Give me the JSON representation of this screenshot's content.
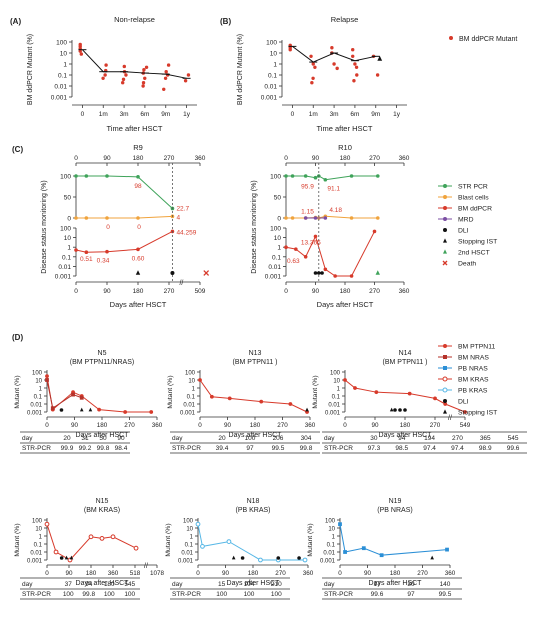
{
  "colors": {
    "red": "#d73a2b",
    "darkred": "#b5322a",
    "green": "#3fa35a",
    "orange": "#f0a33c",
    "purple": "#7b4ea3",
    "blue": "#2b8fd6",
    "lightblue": "#56b7e6",
    "black": "#111111",
    "axis": "#333333",
    "dash": "#555555"
  },
  "labels": {
    "panel_a": "(A)",
    "panel_b": "(B)",
    "panel_c": "(C)",
    "panel_d": "(D)",
    "dpcr_axis": "BM ddPCR Mutant (%)",
    "time_after_hsct": "Time after HSCT",
    "days_after_hsct": "Days after HSCT",
    "disease_status": "Disease status monitoring (%)",
    "mutant_pct": "Mutant (%)",
    "day": "day",
    "str_pcr": "STR-PCR"
  },
  "chart_data": [
    {
      "id": "A",
      "type": "scatter",
      "title": "Non-relapse",
      "xlabel": "Time after HSCT",
      "ylabel": "BM ddPCR Mutant (%)",
      "categories": [
        "0",
        "1m",
        "3m",
        "6m",
        "9m",
        "1y"
      ],
      "ylog": true,
      "ylim": [
        0.001,
        100
      ],
      "yticks": [
        "100",
        "10",
        "1",
        "0.1",
        "0.01",
        "0.001"
      ],
      "points": [
        [
          0,
          40
        ],
        [
          0,
          25
        ],
        [
          0,
          15
        ],
        [
          0,
          8
        ],
        [
          0,
          60
        ],
        [
          1,
          0.8
        ],
        [
          1,
          0.25
        ],
        [
          1,
          0.05
        ],
        [
          1,
          0.1
        ],
        [
          2,
          0.6
        ],
        [
          2,
          0.2
        ],
        [
          2,
          0.1
        ],
        [
          2,
          0.04
        ],
        [
          2,
          0.02
        ],
        [
          3,
          0.5
        ],
        [
          3,
          0.3
        ],
        [
          3,
          0.15
        ],
        [
          3,
          0.05
        ],
        [
          3,
          0.02
        ],
        [
          3,
          0.01
        ],
        [
          4,
          0.8
        ],
        [
          4,
          0.2
        ],
        [
          4,
          0.1
        ],
        [
          4,
          0.05
        ],
        [
          4,
          0.005
        ],
        [
          5,
          0.1
        ],
        [
          5,
          0.03
        ]
      ],
      "median": [
        20,
        0.2,
        0.2,
        0.15,
        0.12,
        0.05
      ]
    },
    {
      "id": "B",
      "type": "scatter",
      "title": "Relapse",
      "xlabel": "Time after HSCT",
      "ylabel": "BM ddPCR Mutant (%)",
      "categories": [
        "0",
        "1m",
        "3m",
        "6m",
        "9m",
        "1y"
      ],
      "ylog": true,
      "ylim": [
        0.001,
        100
      ],
      "yticks": [
        "100",
        "10",
        "1",
        "0.1",
        "0.01",
        "0.001"
      ],
      "legend": "BM ddPCR Mutant",
      "points": [
        [
          0,
          50
        ],
        [
          0,
          40
        ],
        [
          0,
          30
        ],
        [
          0,
          20
        ],
        [
          1,
          5
        ],
        [
          1,
          1
        ],
        [
          1,
          0.5
        ],
        [
          1,
          0.05
        ],
        [
          1,
          0.02
        ],
        [
          2,
          30
        ],
        [
          2,
          10
        ],
        [
          2,
          1
        ],
        [
          2,
          0.4
        ],
        [
          3,
          20
        ],
        [
          3,
          5
        ],
        [
          3,
          1
        ],
        [
          3,
          0.5
        ],
        [
          3,
          0.1
        ],
        [
          3,
          0.03
        ],
        [
          4,
          5
        ],
        [
          4,
          0.1
        ]
      ],
      "median": [
        40,
        1.5,
        10,
        2,
        5,
        null
      ]
    },
    {
      "id": "C-R9",
      "type": "line",
      "title": "R9",
      "top_xticks": [
        "0",
        "90",
        "180",
        "270",
        "360"
      ],
      "top": {
        "ylim": [
          0,
          100
        ],
        "yticks": [
          "100",
          "50",
          "0"
        ],
        "series": [
          {
            "name": "STR PCR",
            "x": [
              0,
              30,
              90,
              180,
              280
            ],
            "y": [
              100,
              100,
              100,
              98,
              22.7
            ]
          },
          {
            "name": "Blast cells",
            "x": [
              0,
              30,
              90,
              180,
              280
            ],
            "y": [
              0,
              0,
              0,
              0,
              4
            ]
          }
        ],
        "annotations": [
          "98",
          "22.7",
          "0",
          "0",
          "4"
        ]
      },
      "bottom": {
        "ylog": true,
        "ylim": [
          0.001,
          100
        ],
        "yticks": [
          "100",
          "10",
          "1",
          "0.1",
          "0.01",
          "0.001"
        ],
        "series": [
          {
            "name": "BM ddPCR",
            "x": [
              0,
              30,
              90,
              180,
              280
            ],
            "y": [
              0.51,
              0.3,
              0.34,
              0.6,
              44.259
            ]
          }
        ],
        "annotations": [
          "0.51",
          "0.34",
          "0.60",
          "44.259"
        ]
      },
      "xticks": [
        "0",
        "90",
        "180",
        "270",
        "509"
      ],
      "xlabel": "Days after HSCT",
      "ylabel": "Disease status monitoring (%)",
      "events": [
        {
          "type": "stopping_ist",
          "x": 180
        },
        {
          "type": "dli",
          "x": 280
        },
        {
          "type": "death",
          "x": 509
        }
      ]
    },
    {
      "id": "C-R10",
      "type": "line",
      "title": "R10",
      "top_xticks": [
        "0",
        "90",
        "180",
        "270",
        "360"
      ],
      "top": {
        "ylim": [
          0,
          100
        ],
        "yticks": [
          "100",
          "50",
          "0"
        ],
        "series": [
          {
            "name": "STR PCR",
            "x": [
              0,
              20,
              60,
              90,
              100,
              120,
              200,
              280
            ],
            "y": [
              100,
              100,
              100,
              95.9,
              100,
              91.1,
              100,
              100
            ]
          },
          {
            "name": "Blast cells",
            "x": [
              0,
              20,
              60,
              90,
              100,
              120,
              200,
              280
            ],
            "y": [
              0,
              0,
              0,
              1.15,
              0,
              4.18,
              0,
              0
            ]
          },
          {
            "name": "MRD",
            "x": [
              60,
              90,
              120
            ],
            "y": [
              0,
              0,
              0
            ]
          }
        ],
        "annotations": [
          "95.9",
          "91.1",
          "1.15",
          "4.18"
        ]
      },
      "bottom": {
        "ylog": true,
        "ylim": [
          0.001,
          100
        ],
        "yticks": [
          "100",
          "10",
          "1",
          "0.1",
          "0.01",
          "0.001"
        ],
        "series": [
          {
            "name": "BM ddPCR",
            "x": [
              0,
              30,
              60,
              90,
              120,
              150,
              200,
              270
            ],
            "y": [
              1,
              0.63,
              0.1,
              13.365,
              0.005,
              0.001,
              0.001,
              44
            ]
          }
        ],
        "annotations": [
          "0.63",
          "13.365"
        ]
      },
      "xticks": [
        "0",
        "90",
        "180",
        "270",
        "360"
      ],
      "xlabel": "Days after HSCT",
      "ylabel": "Disease status monitoring (%)",
      "events": [
        {
          "type": "dli",
          "x": 90
        },
        {
          "type": "dli",
          "x": 100
        },
        {
          "type": "dli",
          "x": 110
        },
        {
          "type": "second_hsct",
          "x": 280
        }
      ]
    },
    {
      "id": "D-N5",
      "type": "line",
      "title": "N5",
      "subtitle": "(BM PTPN11/NRAS)",
      "xticks": [
        "0",
        "90",
        "180",
        "270",
        "360"
      ],
      "xlabel": "Days after HSCT",
      "ylabel": "Mutant (%)",
      "series": [
        {
          "name": "BM PTPN11",
          "x": [
            0,
            20,
            90,
            120,
            180,
            270,
            360
          ],
          "y": [
            30,
            0.002,
            0.3,
            0.1,
            0.002,
            0.001,
            0.001
          ]
        },
        {
          "name": "BM NRAS",
          "x": [
            0,
            20,
            90,
            120
          ],
          "y": [
            10,
            0.003,
            0.15,
            0.06
          ]
        }
      ],
      "events": [
        {
          "type": "dli",
          "x": 50
        },
        {
          "type": "stopping_ist",
          "x": 120
        },
        {
          "type": "stopping_ist",
          "x": 150
        }
      ],
      "table": {
        "day": [
          "20",
          "31",
          "50",
          "90"
        ],
        "str_pcr": [
          "99.9",
          "99.2",
          "99.8",
          "98.4"
        ]
      }
    },
    {
      "id": "D-N13",
      "type": "line",
      "title": "N13",
      "subtitle": "(BM PTPN11 )",
      "xticks": [
        "0",
        "90",
        "180",
        "270",
        "360"
      ],
      "xlabel": "Days after HSCT",
      "ylabel": "Mutant (%)",
      "series": [
        {
          "name": "BM PTPN11",
          "x": [
            0,
            40,
            100,
            206,
            304,
            360
          ],
          "y": [
            10,
            0.08,
            0.05,
            0.02,
            0.01,
            0.001
          ]
        }
      ],
      "events": [
        {
          "type": "stopping_ist",
          "x": 360
        }
      ],
      "table": {
        "day": [
          "20",
          "100",
          "206",
          "304"
        ],
        "str_pcr": [
          "39.4",
          "97",
          "99.5",
          "99.8"
        ]
      }
    },
    {
      "id": "D-N14",
      "type": "line",
      "title": "N14",
      "subtitle": "(BM PTPN11 )",
      "xticks": [
        "0",
        "90",
        "180",
        "270",
        "549"
      ],
      "xlabel": "Days after HSCT",
      "ylabel": "Mutant (%)",
      "series": [
        {
          "name": "BM PTPN11",
          "x": [
            0,
            30,
            94,
            194,
            270,
            365,
            549
          ],
          "y": [
            10,
            1,
            0.3,
            0.2,
            0.05,
            0.01,
            0.001
          ]
        }
      ],
      "events": [
        {
          "type": "stopping_ist",
          "x": 140
        },
        {
          "type": "dli",
          "x": 150
        },
        {
          "type": "dli",
          "x": 165
        },
        {
          "type": "dli",
          "x": 180
        }
      ],
      "table": {
        "day": [
          "30",
          "94",
          "194",
          "270",
          "365",
          "545"
        ],
        "str_pcr": [
          "97.3",
          "98.5",
          "97.4",
          "97.4",
          "98.9",
          "99.6"
        ]
      }
    },
    {
      "id": "D-N15",
      "type": "line",
      "title": "N15",
      "subtitle": "(BM KRAS)",
      "xticks": [
        "0",
        "90",
        "180",
        "360",
        "518",
        "1078"
      ],
      "xlabel": "Days after HSCT",
      "ylabel": "Mutant (%)",
      "series": [
        {
          "name": "BM KRAS",
          "x": [
            0,
            37,
            94,
            180,
            270,
            360,
            545
          ],
          "y": [
            30,
            0.01,
            0.001,
            0.8,
            0.5,
            0.8,
            0.03
          ]
        }
      ],
      "events": [
        {
          "type": "dli",
          "x": 60
        },
        {
          "type": "stopping_ist",
          "x": 80
        },
        {
          "type": "stopping_ist",
          "x": 100
        }
      ],
      "table": {
        "day": [
          "37",
          "94",
          "180",
          "545"
        ],
        "str_pcr": [
          "100",
          "99.8",
          "100",
          "100"
        ]
      }
    },
    {
      "id": "D-N18",
      "type": "line",
      "title": "N18",
      "subtitle": "(PB KRAS)",
      "xticks": [
        "0",
        "90",
        "180",
        "270",
        "360"
      ],
      "xlabel": "Days after HSCT",
      "ylabel": "Mutant (%)",
      "series": [
        {
          "name": "PB KRAS",
          "x": [
            0,
            15,
            104,
            210,
            270,
            360
          ],
          "y": [
            30,
            0.05,
            0.2,
            0.001,
            0.001,
            0.001
          ]
        }
      ],
      "events": [
        {
          "type": "stopping_ist",
          "x": 120
        },
        {
          "type": "dli",
          "x": 150
        },
        {
          "type": "dli",
          "x": 270
        },
        {
          "type": "dli",
          "x": 340
        }
      ],
      "table": {
        "day": [
          "15",
          "104",
          "210"
        ],
        "str_pcr": [
          "100",
          "100",
          "100"
        ]
      }
    },
    {
      "id": "D-N19",
      "type": "line",
      "title": "N19",
      "subtitle": "(PB NRAS)",
      "xticks": [
        "0",
        "90",
        "180",
        "270",
        "360"
      ],
      "xlabel": "Days after HSCT",
      "ylabel": "Mutant (%)",
      "series": [
        {
          "name": "PB NRAS",
          "x": [
            0,
            17,
            80,
            140,
            360
          ],
          "y": [
            30,
            0.01,
            0.03,
            0.004,
            0.02
          ]
        }
      ],
      "events": [
        {
          "type": "stopping_ist",
          "x": 310
        }
      ],
      "table": {
        "day": [
          "17",
          "30",
          "140"
        ],
        "str_pcr": [
          "99.6",
          "97",
          "99.5"
        ]
      }
    }
  ],
  "legend_c": [
    {
      "label": "STR PCR",
      "marker": "circle",
      "color": "#3fa35a"
    },
    {
      "label": "Blast cells",
      "marker": "circle",
      "color": "#f0a33c"
    },
    {
      "label": "BM ddPCR",
      "marker": "circle",
      "color": "#d73a2b"
    },
    {
      "label": "MRD",
      "marker": "circle",
      "color": "#7b4ea3"
    },
    {
      "label": "DLI",
      "marker": "dot",
      "color": "#111111"
    },
    {
      "label": "Stopping IST",
      "marker": "triangle",
      "color": "#111111"
    },
    {
      "label": "2nd HSCT",
      "marker": "triangle",
      "color": "#3fa35a"
    },
    {
      "label": "Death",
      "marker": "x",
      "color": "#d73a2b"
    }
  ],
  "legend_d": [
    {
      "label": "BM PTPN11",
      "marker": "circle",
      "color": "#d73a2b"
    },
    {
      "label": "BM NRAS",
      "marker": "square",
      "color": "#b5322a"
    },
    {
      "label": "PB NRAS",
      "marker": "square",
      "color": "#2b8fd6"
    },
    {
      "label": "BM KRAS",
      "marker": "open-circle",
      "color": "#d73a2b"
    },
    {
      "label": "PB KRAS",
      "marker": "open-circle",
      "color": "#56b7e6"
    },
    {
      "label": "DLI",
      "marker": "dot",
      "color": "#111111"
    },
    {
      "label": "Stopping IST",
      "marker": "triangle",
      "color": "#111111"
    }
  ]
}
